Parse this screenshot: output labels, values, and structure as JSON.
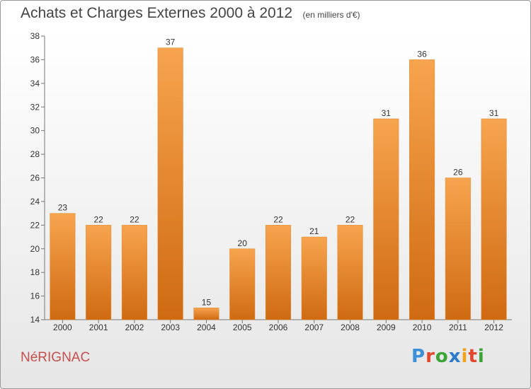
{
  "header": {
    "title": "Achats et Charges Externes 2000 à 2012",
    "unit": "(en milliers d'€)"
  },
  "footer": {
    "commune": "NéRIGNAC",
    "logo_text": "Proxiti"
  },
  "colors": {
    "bar_top": "#f7a44e",
    "bar_bottom": "#cf6a12",
    "commune": "#c84f4f",
    "logo": [
      "#3a8fd8",
      "#e2462b",
      "#3aa535",
      "#2c7ac9",
      "#f0a21c",
      "#e2462b",
      "#3aa535"
    ]
  },
  "chart_data": {
    "type": "bar",
    "categories": [
      "2000",
      "2001",
      "2002",
      "2003",
      "2004",
      "2005",
      "2006",
      "2007",
      "2008",
      "2009",
      "2010",
      "2011",
      "2012"
    ],
    "values": [
      23,
      22,
      22,
      37,
      15,
      20,
      22,
      21,
      22,
      31,
      36,
      26,
      31
    ],
    "title": "Achats et Charges Externes 2000 à 2012",
    "subtitle": "(en milliers d'€)",
    "xlabel": "",
    "ylabel": "",
    "ylim": [
      14,
      38
    ],
    "yticks": [
      14,
      16,
      18,
      20,
      22,
      24,
      26,
      28,
      30,
      32,
      34,
      36,
      38
    ],
    "grid": false,
    "data_labels": true
  }
}
